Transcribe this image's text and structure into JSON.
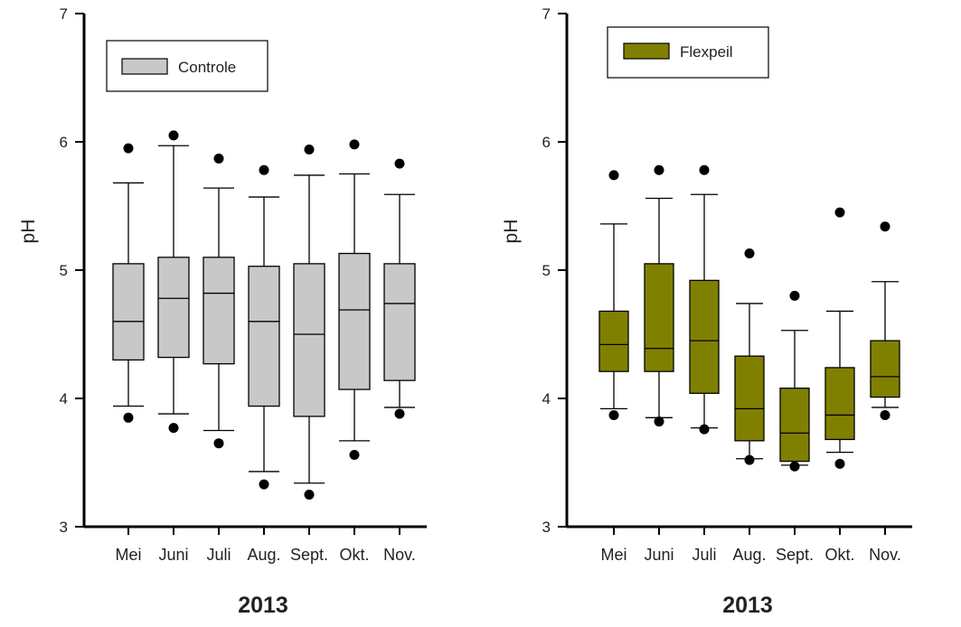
{
  "chart_data": [
    {
      "type": "boxplot",
      "title": "",
      "xlabel": "2013",
      "ylabel": "pH",
      "ylim": [
        3,
        7
      ],
      "yticks": [
        "3",
        "4",
        "5",
        "6",
        "7"
      ],
      "categories": [
        "Mei",
        "Juni",
        "Juli",
        "Aug.",
        "Sept.",
        "Okt.",
        "Nov."
      ],
      "legend": {
        "label": "Controle",
        "position": "top-left"
      },
      "box_color": "#c8c8c8",
      "series": [
        {
          "name": "Controle",
          "boxes": [
            {
              "whisker_low": 3.94,
              "q1": 4.3,
              "median": 4.6,
              "q3": 5.05,
              "whisker_high": 5.68,
              "outliers": [
                3.85,
                5.95
              ]
            },
            {
              "whisker_low": 3.88,
              "q1": 4.32,
              "median": 4.78,
              "q3": 5.1,
              "whisker_high": 5.97,
              "outliers": [
                3.77,
                6.05
              ]
            },
            {
              "whisker_low": 3.75,
              "q1": 4.27,
              "median": 4.82,
              "q3": 5.1,
              "whisker_high": 5.64,
              "outliers": [
                3.65,
                5.87
              ]
            },
            {
              "whisker_low": 3.43,
              "q1": 3.94,
              "median": 4.6,
              "q3": 5.03,
              "whisker_high": 5.57,
              "outliers": [
                3.33,
                5.78
              ]
            },
            {
              "whisker_low": 3.34,
              "q1": 3.86,
              "median": 4.5,
              "q3": 5.05,
              "whisker_high": 5.74,
              "outliers": [
                3.25,
                5.94
              ]
            },
            {
              "whisker_low": 3.67,
              "q1": 4.07,
              "median": 4.69,
              "q3": 5.13,
              "whisker_high": 5.75,
              "outliers": [
                3.56,
                5.98
              ]
            },
            {
              "whisker_low": 3.93,
              "q1": 4.14,
              "median": 4.74,
              "q3": 5.05,
              "whisker_high": 5.59,
              "outliers": [
                3.88,
                5.83
              ]
            }
          ]
        }
      ]
    },
    {
      "type": "boxplot",
      "title": "",
      "xlabel": "2013",
      "ylabel": "pH",
      "ylim": [
        3,
        7
      ],
      "yticks": [
        "3",
        "4",
        "5",
        "6",
        "7"
      ],
      "categories": [
        "Mei",
        "Juni",
        "Juli",
        "Aug.",
        "Sept.",
        "Okt.",
        "Nov."
      ],
      "legend": {
        "label": "Flexpeil",
        "position": "top-left"
      },
      "box_color": "#808000",
      "series": [
        {
          "name": "Flexpeil",
          "boxes": [
            {
              "whisker_low": 3.92,
              "q1": 4.21,
              "median": 4.42,
              "q3": 4.68,
              "whisker_high": 5.36,
              "outliers": [
                3.87,
                5.74
              ]
            },
            {
              "whisker_low": 3.85,
              "q1": 4.21,
              "median": 4.39,
              "q3": 5.05,
              "whisker_high": 5.56,
              "outliers": [
                3.82,
                5.78
              ]
            },
            {
              "whisker_low": 3.77,
              "q1": 4.04,
              "median": 4.45,
              "q3": 4.92,
              "whisker_high": 5.59,
              "outliers": [
                3.76,
                5.78
              ]
            },
            {
              "whisker_low": 3.53,
              "q1": 3.67,
              "median": 3.92,
              "q3": 4.33,
              "whisker_high": 4.74,
              "outliers": [
                3.52,
                5.13
              ]
            },
            {
              "whisker_low": 3.48,
              "q1": 3.51,
              "median": 3.73,
              "q3": 4.08,
              "whisker_high": 4.53,
              "outliers": [
                3.47,
                4.8
              ]
            },
            {
              "whisker_low": 3.58,
              "q1": 3.68,
              "median": 3.87,
              "q3": 4.24,
              "whisker_high": 4.68,
              "outliers": [
                3.49,
                5.45
              ]
            },
            {
              "whisker_low": 3.93,
              "q1": 4.01,
              "median": 4.17,
              "q3": 4.45,
              "whisker_high": 4.91,
              "outliers": [
                3.87,
                5.34
              ]
            }
          ]
        }
      ]
    }
  ]
}
